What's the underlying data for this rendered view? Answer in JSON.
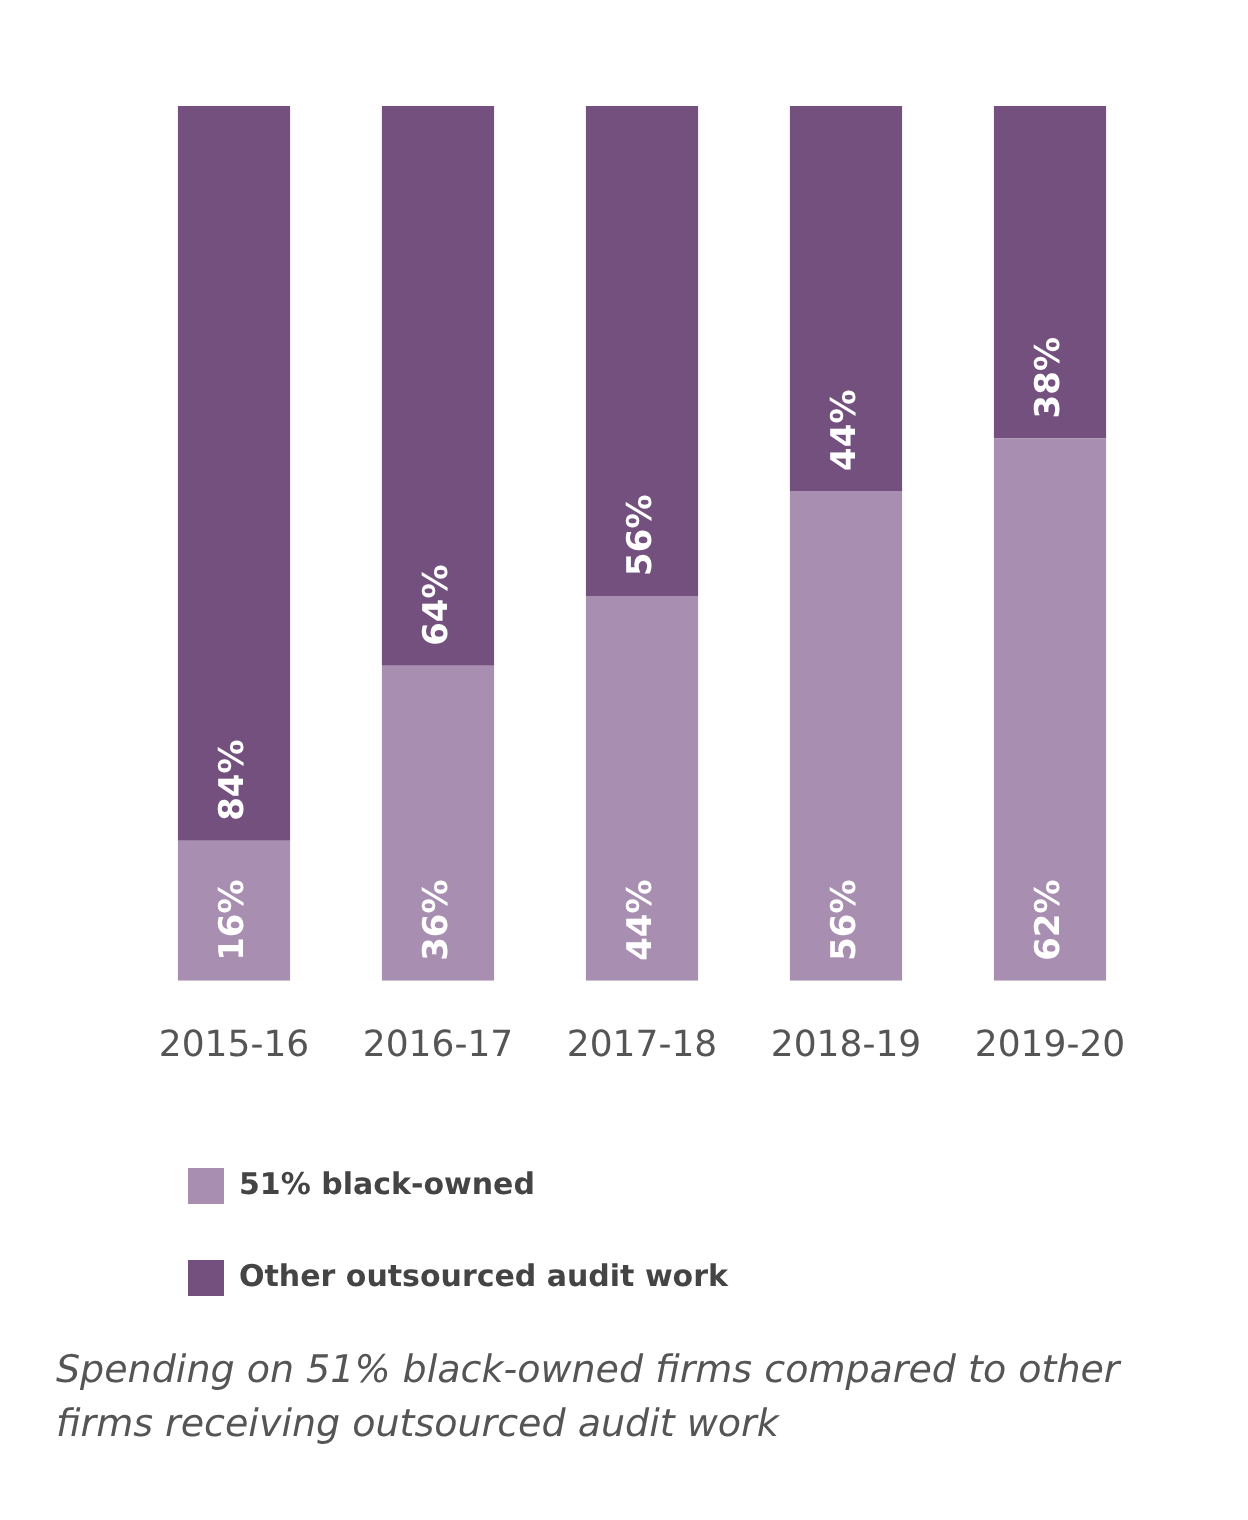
{
  "chart_data": {
    "type": "bar",
    "stacked": true,
    "legend": "bottom left",
    "grid": false,
    "categories": [
      "2015-16",
      "2016-17",
      "2017-18",
      "2018-19",
      "2019-20"
    ],
    "series": [
      {
        "name": "51% black-owned",
        "color": "#a88fb1",
        "values": [
          16,
          36,
          44,
          56,
          62
        ],
        "value_labels": [
          "16%",
          "36%",
          "44%",
          "56%",
          "62%"
        ]
      },
      {
        "name": "Other outsourced audit work",
        "color": "#73507e",
        "values": [
          84,
          64,
          56,
          44,
          38
        ],
        "value_labels": [
          "84%",
          "64%",
          "56%",
          "44%",
          "38%"
        ]
      }
    ],
    "annotations": [
      "Spending on 51% black-owned firms compared to other firms receiving outsourced audit work"
    ]
  }
}
